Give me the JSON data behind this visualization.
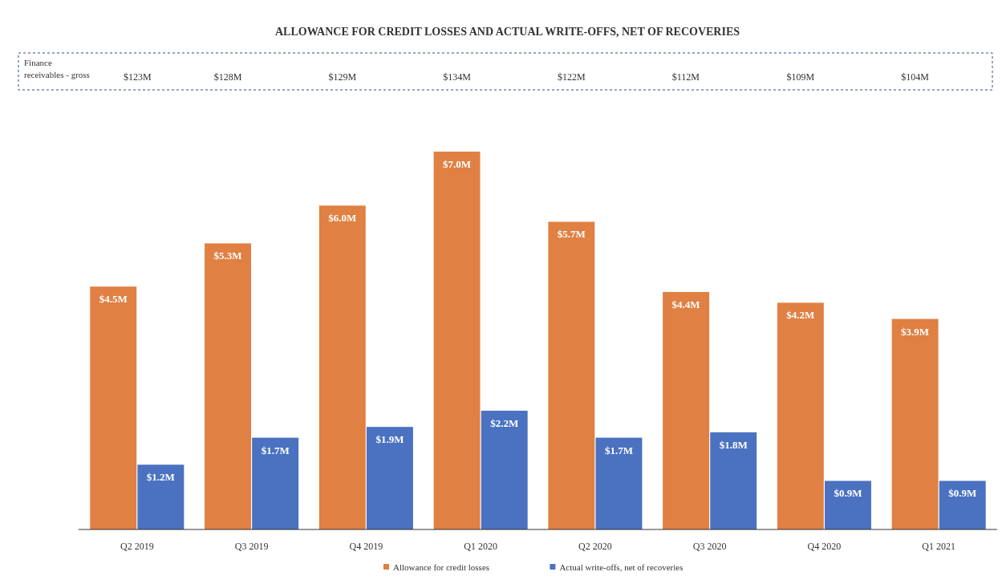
{
  "chart_data": {
    "type": "bar",
    "title": "ALLOWANCE FOR CREDIT LOSSES AND ACTUAL WRITE-OFFS, NET OF RECOVERIES",
    "categories": [
      "Q2 2019",
      "Q3 2019",
      "Q4 2019",
      "Q1 2020",
      "Q2 2020",
      "Q3 2020",
      "Q4 2020",
      "Q1 2021"
    ],
    "series": [
      {
        "name": "Allowance for credit losses",
        "color": "#e08043",
        "values": [
          4.5,
          5.3,
          6.0,
          7.0,
          5.7,
          4.4,
          4.2,
          3.9
        ],
        "value_labels": [
          "$4.5M",
          "$5.3M",
          "$6.0M",
          "$7.0M",
          "$5.7M",
          "$4.4M",
          "$4.2M",
          "$3.9M"
        ]
      },
      {
        "name": "Actual write-offs, net of recoveries",
        "color": "#4a72c1",
        "values": [
          1.2,
          1.7,
          1.9,
          2.2,
          1.7,
          1.8,
          0.9,
          0.9
        ],
        "value_labels": [
          "$1.2M",
          "$1.7M",
          "$1.9M",
          "$2.2M",
          "$1.7M",
          "$1.8M",
          "$0.9M",
          "$0.9M"
        ]
      }
    ],
    "annotations": [
      "Finance receivables - gross",
      "$123M",
      "$128M",
      "$129M",
      "$134M",
      "$122M",
      "$112M",
      "$109M",
      "$104M"
    ],
    "legend": "bottom",
    "grid": false
  }
}
